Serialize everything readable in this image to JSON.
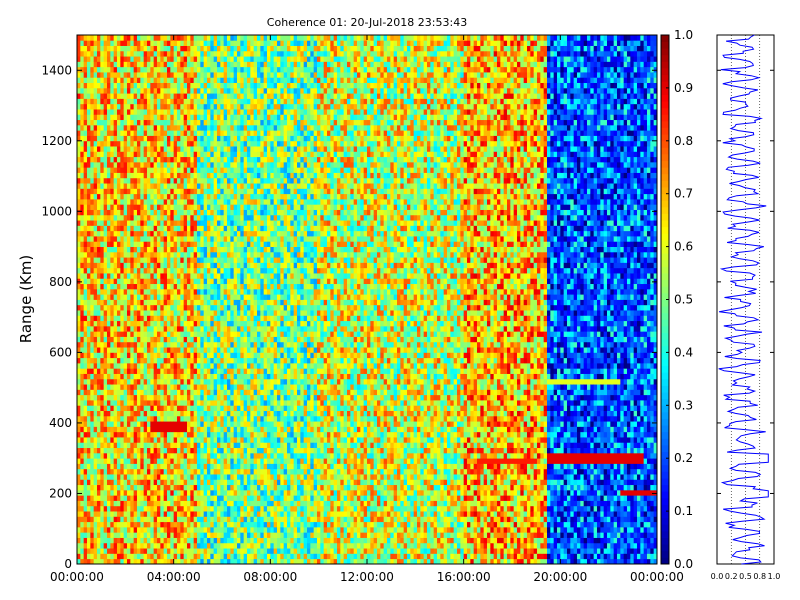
{
  "chart_data": [
    {
      "type": "heatmap",
      "title": "Coherence 01: 20-Jul-2018 23:53:43",
      "xlabel": "",
      "ylabel": "Range (Km)",
      "x_tick_labels": [
        "00:00:00",
        "04:00:00",
        "08:00:00",
        "12:00:00",
        "16:00:00",
        "20:00:00",
        "00:00:00"
      ],
      "x_range_hours": [
        0,
        24
      ],
      "ylim": [
        0,
        1500
      ],
      "y_ticks": [
        0,
        200,
        400,
        600,
        800,
        1000,
        1200,
        1400
      ],
      "colorbar": {
        "range": [
          0,
          1
        ],
        "ticks": [
          "0.0",
          "0.1",
          "0.2",
          "0.3",
          "0.4",
          "0.5",
          "0.6",
          "0.7",
          "0.8",
          "0.9",
          "1.0"
        ],
        "colormap": "jet"
      },
      "regions": [
        {
          "hours": [
            0,
            5
          ],
          "mean_coherence": 0.65
        },
        {
          "hours": [
            5,
            10
          ],
          "mean_coherence": 0.5
        },
        {
          "hours": [
            10,
            16
          ],
          "mean_coherence": 0.58
        },
        {
          "hours": [
            16,
            19.5
          ],
          "mean_coherence": 0.68
        },
        {
          "hours": [
            19.5,
            24
          ],
          "mean_coherence": 0.22
        }
      ],
      "bands": [
        {
          "range_km": 300,
          "hours": [
            19.5,
            23.5
          ],
          "coherence": 0.9
        },
        {
          "range_km": 290,
          "hours": [
            16.5,
            19.0
          ],
          "coherence": 0.85
        },
        {
          "range_km": 200,
          "hours": [
            22.5,
            24
          ],
          "coherence": 0.9
        },
        {
          "range_km": 520,
          "hours": [
            19.5,
            22.5
          ],
          "coherence": 0.6
        },
        {
          "range_km": 390,
          "hours": [
            3.0,
            4.5
          ],
          "coherence": 0.9
        }
      ],
      "grid": false
    },
    {
      "type": "line",
      "title": "",
      "x_tick_labels": [
        "0.0",
        "0.2",
        "0.5",
        "0.8",
        "1.0"
      ],
      "xlim": [
        0,
        1
      ],
      "ylim": [
        0,
        1500
      ],
      "series": [
        {
          "color": "#0000ff",
          "profile": "coherence vs range at last time"
        }
      ],
      "grid": true
    }
  ]
}
